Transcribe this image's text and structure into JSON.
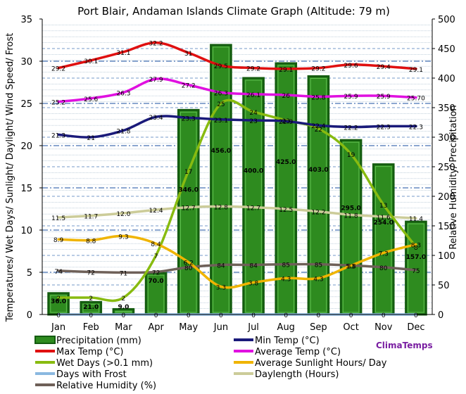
{
  "chart_data": {
    "type": "bar",
    "title": "Port Blair, Andaman Islands Climate Graph (Altitude: 79 m)",
    "categories": [
      "Jan",
      "Feb",
      "Mar",
      "Apr",
      "May",
      "Jun",
      "Jul",
      "Aug",
      "Sep",
      "Oct",
      "Nov",
      "Dec"
    ],
    "ylabel_left": "Temperatures/ Wet Days/ Sunlight/ Daylight/ Wind Speed/ Frost",
    "ylabel_right": "Relative Humidity/ Precipitation",
    "ylim_left": [
      0,
      35
    ],
    "ylim_right": [
      0,
      500
    ],
    "left_ticks": [
      "0",
      "5",
      "10",
      "15",
      "20",
      "25",
      "30",
      "35"
    ],
    "right_ticks": [
      "0",
      "50",
      "100",
      "150",
      "200",
      "250",
      "300",
      "350",
      "400",
      "450",
      "500"
    ],
    "brand": "ClimaTemps",
    "bars": {
      "name": "Precipitation (mm)",
      "axis": "right",
      "color": "#2e8b1f",
      "values": [
        36.0,
        21.0,
        9.0,
        70.0,
        346.0,
        456.0,
        400.0,
        425.0,
        403.0,
        295.0,
        254.0,
        157.0
      ],
      "labels": [
        "36.0",
        "21.0",
        "9.0",
        "70.0",
        "346.0",
        "456.0",
        "400.0",
        "425.0",
        "403.0",
        "295.0",
        "254.0",
        "157.0"
      ]
    },
    "series": [
      {
        "name": "Max Temp (°C)",
        "axis": "left",
        "color": "#e01010",
        "values": [
          29.2,
          30.1,
          31.1,
          32.2,
          31.0,
          29.5,
          29.2,
          29.1,
          29.2,
          29.6,
          29.4,
          29.1
        ],
        "labels": [
          "29.2",
          "30.1",
          "31.1",
          "32.2",
          "31",
          "29.5",
          "29.2",
          "29.1",
          "29.2",
          "29.6",
          "29.4",
          "29.1"
        ]
      },
      {
        "name": "Average Temp (°C)",
        "axis": "left",
        "color": "#e010e0",
        "values": [
          25.2,
          25.6,
          26.3,
          27.9,
          27.2,
          26.3,
          26.1,
          26.0,
          25.8,
          25.9,
          25.9,
          25.7
        ],
        "labels": [
          "25.2",
          "25.6",
          "26.3",
          "27.9",
          "27.2",
          "26.3",
          "26.1",
          "26",
          "25.8",
          "25.9",
          "25.9",
          "25.70"
        ]
      },
      {
        "name": "Min Temp (°C)",
        "axis": "left",
        "color": "#1a1a7a",
        "values": [
          21.3,
          21.0,
          21.8,
          23.4,
          23.3,
          23.1,
          23.0,
          22.9,
          22.4,
          22.2,
          22.3,
          22.3
        ],
        "labels": [
          "21.3",
          "21",
          "21.8",
          "23.4",
          "23.3",
          "23.1",
          "23",
          "22.9",
          "22.4",
          "22.2",
          "22.3",
          "22.3"
        ]
      },
      {
        "name": "Wet Days (>0.1 mm)",
        "axis": "left",
        "color": "#88bb10",
        "values": [
          2,
          2,
          2,
          7,
          17,
          25,
          24,
          23,
          22,
          19,
          13,
          8
        ],
        "labels": [
          "2",
          "2",
          "2",
          "7",
          "17",
          "25",
          "24",
          "23",
          "22",
          "19",
          "13",
          "8"
        ]
      },
      {
        "name": "Average Sunlight Hours/ Day",
        "axis": "left",
        "color": "#f0b400",
        "values": [
          8.9,
          8.8,
          9.3,
          8.4,
          6.2,
          3.3,
          3.8,
          4.3,
          4.3,
          5.8,
          7.3,
          8.3
        ],
        "labels": [
          "8.9",
          "8.8",
          "9.3",
          "8.4",
          "6.2",
          "3.3",
          "3.8",
          "4.3",
          "4.3",
          "5.8",
          "7.3",
          "8.3"
        ]
      },
      {
        "name": "Days with Frost",
        "axis": "left",
        "color": "#8ab8e0",
        "values": [
          0,
          0,
          0,
          0,
          0,
          0,
          0,
          0,
          0,
          0,
          0,
          0
        ],
        "labels": [
          "0",
          "0",
          "0",
          "0",
          "0",
          "0",
          "0",
          "0",
          "0",
          "0",
          "0",
          "0"
        ]
      },
      {
        "name": "Daylength (Hours)",
        "axis": "left",
        "color": "#cccc99",
        "values": [
          11.5,
          11.7,
          12.0,
          12.4,
          12.7,
          12.8,
          12.7,
          12.5,
          12.2,
          11.8,
          11.6,
          11.4
        ],
        "labels": [
          "11.5",
          "11.7",
          "12.0",
          "12.4",
          "12.7",
          "12.8",
          "12.7",
          "12.5",
          "12.2",
          "11.8",
          "11.6",
          "11.4"
        ]
      },
      {
        "name": "Relative Humidity (%)",
        "axis": "right",
        "color": "#6e6058",
        "values": [
          74,
          72,
          71,
          72,
          80,
          84,
          84,
          85,
          85,
          83,
          80,
          75
        ],
        "labels": [
          "74",
          "72",
          "71",
          "72",
          "80",
          "84",
          "84",
          "85",
          "85",
          "83",
          "80",
          "75"
        ]
      }
    ],
    "legend": [
      {
        "name": "Precipitation (mm)",
        "color": "#2e8b1f",
        "kind": "bar"
      },
      {
        "name": "Min Temp (°C)",
        "color": "#1a1a7a",
        "kind": "line"
      },
      {
        "name": "Max Temp (°C)",
        "color": "#e01010",
        "kind": "line"
      },
      {
        "name": "Average Temp (°C)",
        "color": "#e010e0",
        "kind": "line"
      },
      {
        "name": "Wet Days (>0.1 mm)",
        "color": "#88bb10",
        "kind": "line"
      },
      {
        "name": "Average Sunlight Hours/ Day",
        "color": "#f0b400",
        "kind": "line"
      },
      {
        "name": "Days with Frost",
        "color": "#8ab8e0",
        "kind": "line"
      },
      {
        "name": "Daylength (Hours)",
        "color": "#cccc99",
        "kind": "line"
      },
      {
        "name": "Relative Humidity (%)",
        "color": "#6e6058",
        "kind": "line"
      }
    ]
  }
}
